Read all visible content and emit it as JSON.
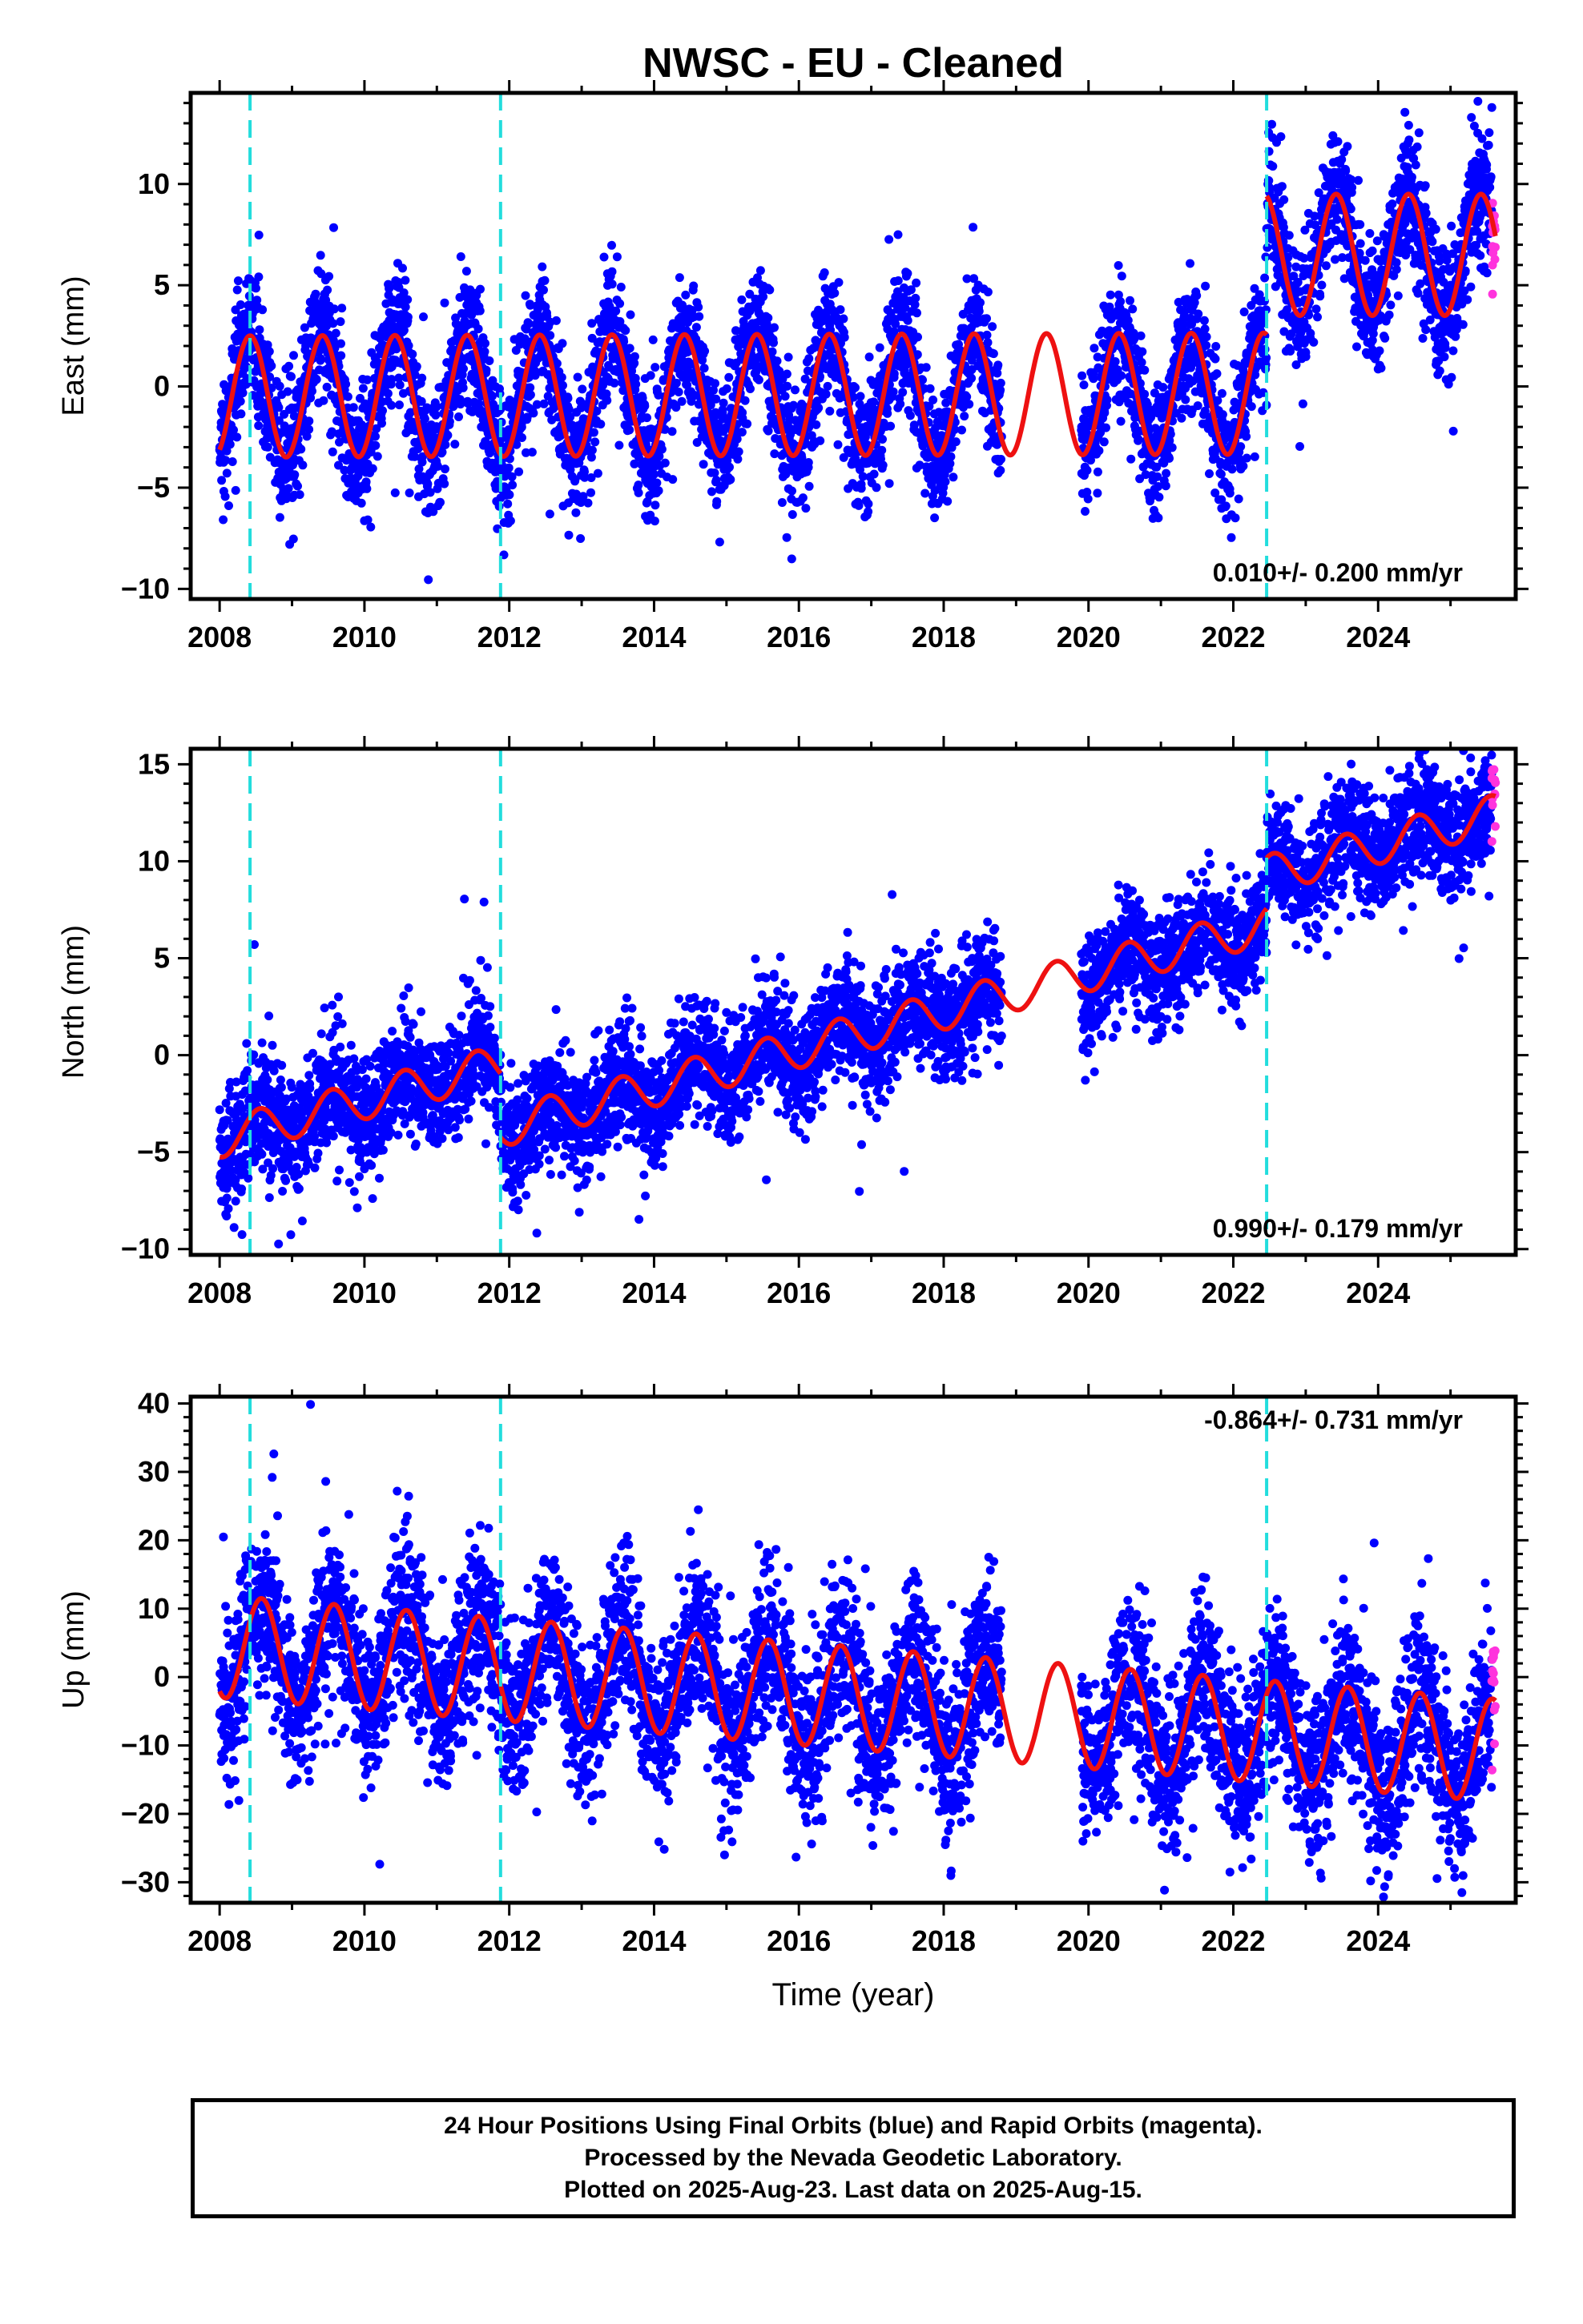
{
  "title": "NWSC  - EU - Cleaned",
  "colors": {
    "data": "#0000ff",
    "rapid": "#ff33dd",
    "model": "#ee1111",
    "event_lines": "#22dddd",
    "frame": "#000000"
  },
  "footer": {
    "line1": "24 Hour Positions Using Final Orbits (blue) and Rapid Orbits (magenta).",
    "line2": "Processed by the Nevada Geodetic Laboratory.",
    "line3": "Plotted on 2025-Aug-23. Last data on 2025-Aug-15."
  },
  "chart_data": [
    {
      "type": "scatter",
      "title": "NWSC  - EU - Cleaned",
      "xlabel": "",
      "ylabel": "East (mm)",
      "xlim": [
        2007.6,
        2025.9
      ],
      "ylim": [
        -10.5,
        14.5
      ],
      "xticks": [
        2008,
        2010,
        2012,
        2014,
        2016,
        2018,
        2020,
        2022,
        2024
      ],
      "yticks": [
        -10,
        -5,
        0,
        5,
        10
      ],
      "rate_label": "0.010+/- 0.200 mm/yr",
      "event_lines": [
        2008.42,
        2011.88,
        2022.46
      ],
      "data_range": [
        2008.0,
        2025.62
      ],
      "model": {
        "segments": [
          {
            "from": 2008.0,
            "to": 2022.46,
            "offset": -0.5,
            "rate": 0.01,
            "amplitude": 3.0
          },
          {
            "from": 2022.46,
            "to": 2025.62,
            "offset": 6.5,
            "rate": 0.0,
            "amplitude": 3.0
          }
        ],
        "peak_phase": 0.42
      },
      "series": [
        {
          "name": "Final Orbits (blue)",
          "values": []
        },
        {
          "name": "Rapid Orbits (magenta)",
          "values": []
        }
      ]
    },
    {
      "type": "scatter",
      "title": "",
      "xlabel": "",
      "ylabel": "North (mm)",
      "xlim": [
        2007.6,
        2025.9
      ],
      "ylim": [
        -10.3,
        15.8
      ],
      "xticks": [
        2008,
        2010,
        2012,
        2014,
        2016,
        2018,
        2020,
        2022,
        2024
      ],
      "yticks": [
        -10,
        -5,
        0,
        5,
        10,
        15
      ],
      "rate_label": "0.990+/- 0.179 mm/yr",
      "event_lines": [
        2008.42,
        2011.88,
        2022.46
      ],
      "data_range": [
        2008.0,
        2025.62
      ],
      "model": {
        "segments": [
          {
            "from": 2008.0,
            "to": 2011.88,
            "offset": -4.3,
            "rate": 0.99,
            "amplitude": 1.0
          },
          {
            "from": 2011.88,
            "to": 2022.46,
            "offset": -7.6,
            "rate": 0.99,
            "amplitude": 1.0
          },
          {
            "from": 2022.46,
            "to": 2025.62,
            "offset": -5.0,
            "rate": 0.99,
            "amplitude": 1.0
          }
        ],
        "peak_phase": 0.55
      },
      "series": [
        {
          "name": "Final Orbits (blue)",
          "values": []
        },
        {
          "name": "Rapid Orbits (magenta)",
          "values": []
        }
      ]
    },
    {
      "type": "scatter",
      "title": "",
      "xlabel": "Time (year)",
      "ylabel": "Up (mm)",
      "xlim": [
        2007.6,
        2025.9
      ],
      "ylim": [
        -33,
        41
      ],
      "xticks": [
        2008,
        2010,
        2012,
        2014,
        2016,
        2018,
        2020,
        2022,
        2024
      ],
      "yticks": [
        -30,
        -20,
        -10,
        0,
        10,
        20,
        30,
        40
      ],
      "rate_label": "-0.864+/- 0.731 mm/yr",
      "event_lines": [
        2008.42,
        2011.88,
        2022.46
      ],
      "data_range": [
        2008.0,
        2025.62
      ],
      "model": {
        "segments": [
          {
            "from": 2008.0,
            "to": 2025.62,
            "offset": 4.5,
            "rate": -0.864,
            "amplitude": 7.5
          }
        ],
        "peak_phase": 0.58
      },
      "series": [
        {
          "name": "Final Orbits (blue)",
          "values": []
        },
        {
          "name": "Rapid Orbits (magenta)",
          "values": []
        }
      ]
    }
  ]
}
